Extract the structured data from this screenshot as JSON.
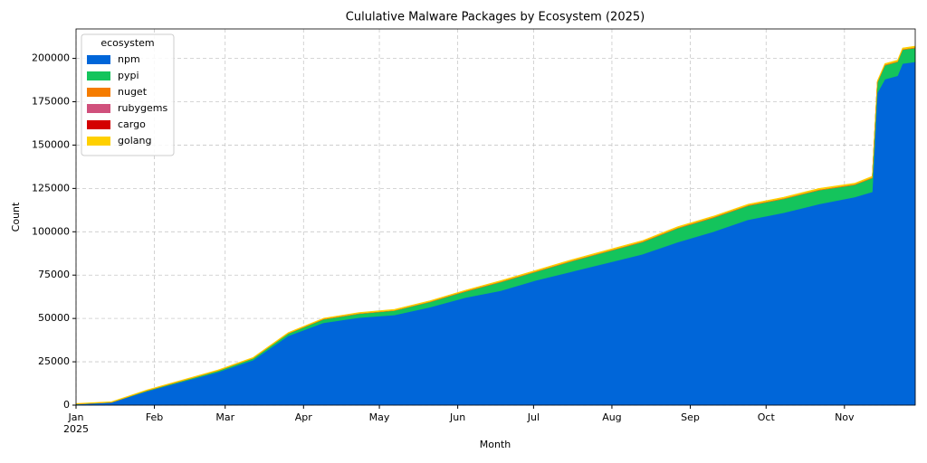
{
  "chart_data": {
    "type": "stacked_area",
    "title": "Cululative Malware Packages by Ecosystem (2025)",
    "x_label": "Month",
    "y_label": "Count",
    "year_label": "2025",
    "legend_title": "ecosystem",
    "legend_position": "upper left",
    "grid": true,
    "x": [
      0,
      14,
      28,
      42,
      56,
      70,
      84,
      98,
      112,
      126,
      140,
      154,
      168,
      182,
      196,
      210,
      224,
      238,
      252,
      266,
      280,
      294,
      308,
      315,
      317,
      320,
      325,
      327,
      332
    ],
    "series": [
      {
        "name": "npm",
        "color": "#0066d9",
        "values": [
          500,
          1500,
          8000,
          13500,
          19000,
          26000,
          40000,
          47500,
          50500,
          52000,
          56500,
          62000,
          66000,
          72000,
          77000,
          82000,
          87000,
          94000,
          100000,
          107000,
          111000,
          116000,
          120000,
          123000,
          180000,
          188000,
          190000,
          197000,
          198000
        ]
      },
      {
        "name": "pypi",
        "color": "#14c45c",
        "values": [
          100,
          100,
          300,
          500,
          700,
          900,
          1300,
          2000,
          2200,
          2500,
          3000,
          3500,
          5000,
          5000,
          6000,
          6500,
          7000,
          8000,
          8000,
          8000,
          8000,
          8000,
          7000,
          8000,
          6000,
          8000,
          8000,
          8000,
          8000
        ]
      },
      {
        "name": "nuget",
        "color": "#f57c00",
        "values": [
          50,
          50,
          100,
          100,
          100,
          150,
          150,
          200,
          200,
          200,
          200,
          250,
          250,
          250,
          250,
          300,
          300,
          300,
          300,
          300,
          300,
          300,
          300,
          300,
          300,
          300,
          300,
          300,
          300
        ]
      },
      {
        "name": "rubygems",
        "color": "#d0507c",
        "values": [
          10,
          10,
          20,
          20,
          20,
          20,
          30,
          30,
          30,
          30,
          30,
          40,
          40,
          40,
          40,
          40,
          40,
          50,
          50,
          50,
          50,
          50,
          50,
          50,
          50,
          50,
          50,
          50,
          50
        ]
      },
      {
        "name": "cargo",
        "color": "#d40000",
        "values": [
          5,
          5,
          10,
          10,
          10,
          10,
          10,
          10,
          10,
          10,
          10,
          15,
          15,
          15,
          15,
          15,
          15,
          20,
          20,
          20,
          20,
          20,
          20,
          20,
          20,
          20,
          20,
          20,
          20
        ]
      },
      {
        "name": "golang",
        "color": "#ffd000",
        "values": [
          300,
          300,
          350,
          350,
          400,
          400,
          450,
          450,
          450,
          500,
          500,
          500,
          500,
          500,
          550,
          550,
          550,
          600,
          600,
          600,
          600,
          650,
          650,
          650,
          700,
          700,
          700,
          700,
          700
        ]
      }
    ],
    "xlim": [
      0,
      332
    ],
    "xticks": [
      {
        "value": 0,
        "label": "Jan"
      },
      {
        "value": 31,
        "label": "Feb"
      },
      {
        "value": 59,
        "label": "Mar"
      },
      {
        "value": 90,
        "label": "Apr"
      },
      {
        "value": 120,
        "label": "May"
      },
      {
        "value": 151,
        "label": "Jun"
      },
      {
        "value": 181,
        "label": "Jul"
      },
      {
        "value": 212,
        "label": "Aug"
      },
      {
        "value": 243,
        "label": "Sep"
      },
      {
        "value": 273,
        "label": "Oct"
      },
      {
        "value": 304,
        "label": "Nov"
      }
    ],
    "ylim": [
      0,
      217000
    ],
    "yticks": [
      0,
      25000,
      50000,
      75000,
      100000,
      125000,
      150000,
      175000,
      200000
    ]
  }
}
